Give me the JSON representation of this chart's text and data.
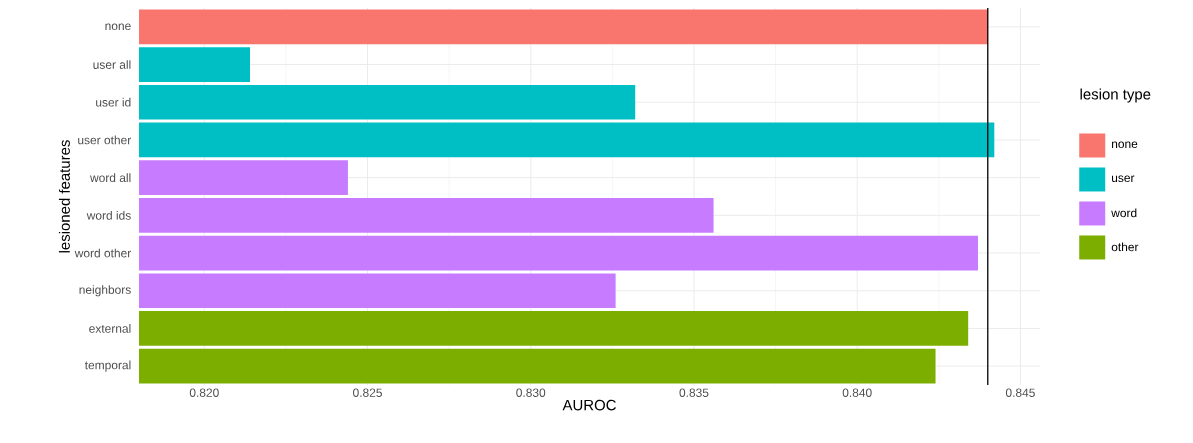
{
  "chart_data": {
    "type": "bar",
    "orientation": "horizontal",
    "xlabel": "AUROC",
    "ylabel": "lesioned features",
    "legend_title": "lesion type",
    "categories": [
      "none",
      "user all",
      "user id",
      "user other",
      "word all",
      "word ids",
      "word other",
      "neighbors",
      "external",
      "temporal"
    ],
    "series": [
      {
        "name": "none",
        "color": "#f8766d",
        "values": [
          0.844,
          null,
          null,
          null,
          null,
          null,
          null,
          null,
          null,
          null
        ]
      },
      {
        "name": "user",
        "color": "#00bfc4",
        "values": [
          null,
          0.8214,
          0.8332,
          0.8442,
          null,
          null,
          null,
          null,
          null,
          null
        ]
      },
      {
        "name": "word",
        "color": "#c77cff",
        "values": [
          null,
          null,
          null,
          null,
          0.8244,
          0.8356,
          0.8437,
          0.8326,
          null,
          null
        ]
      },
      {
        "name": "other",
        "color": "#7cae00",
        "values": [
          null,
          null,
          null,
          null,
          null,
          null,
          null,
          null,
          0.8434,
          0.8424
        ]
      }
    ],
    "xlim": [
      0.818,
      0.8456
    ],
    "xticks": [
      {
        "value": 0.82,
        "label": "0.820"
      },
      {
        "value": 0.825,
        "label": "0.825"
      },
      {
        "value": 0.83,
        "label": "0.830"
      },
      {
        "value": 0.835,
        "label": "0.835"
      },
      {
        "value": 0.84,
        "label": "0.840"
      },
      {
        "value": 0.845,
        "label": "0.845"
      }
    ],
    "ref_lines": [
      {
        "axis": "x",
        "value": 0.844,
        "color": "#000000"
      }
    ],
    "grid": true,
    "legend": "right"
  }
}
